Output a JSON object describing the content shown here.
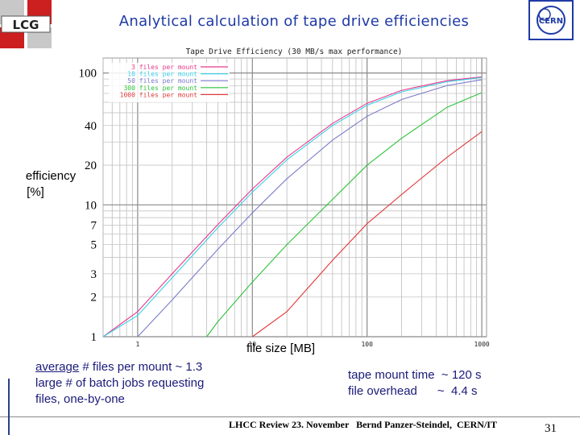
{
  "slide": {
    "title": "Analytical calculation of tape drive efficiencies",
    "y_axis_label_line1": "efficiency",
    "y_axis_label_line2": "[%]",
    "x_axis_label": "file size [MB]",
    "note_left": {
      "word_underlined": "average",
      "line1_rest": " # files per mount ~ 1.3",
      "line2": "large # of batch jobs requesting",
      "line3": "files, one-by-one"
    },
    "note_right": {
      "line1": "tape mount time  ~ 120 s",
      "line2": "file overhead      ~  4.4 s"
    },
    "footer": "LHCC Review 23. November   Bernd Panzer-Steindel,  CERN/IT",
    "page_number": "31",
    "logos": {
      "left": "LCG",
      "right": "CERN"
    }
  },
  "colors": {
    "title": "#1f3aa6",
    "series": [
      "#e8388a",
      "#3ad0e8",
      "#7a7acc",
      "#2ec23a",
      "#e03a3a"
    ]
  },
  "chart_data": {
    "type": "line",
    "title": "Tape Drive Efficiency (30 MB/s max performance)",
    "x_scale": "log",
    "y_scale": "log",
    "xlim": [
      0.5,
      1100
    ],
    "ylim": [
      1,
      130
    ],
    "x_ticks": [
      1,
      10,
      100,
      1000
    ],
    "x_tick_labels": [
      "1",
      "10",
      "100",
      "1000"
    ],
    "y_ticks": [
      1,
      2,
      3,
      5,
      7,
      10,
      20,
      40,
      100
    ],
    "y_tick_labels": [
      "1",
      "2",
      "3",
      "5",
      "7",
      "10",
      "20",
      "40",
      "100"
    ],
    "grid": true,
    "legend_position": "top-left",
    "series": [
      {
        "name": "3 files per mount",
        "x": [
          0.5,
          1,
          2,
          5,
          10,
          20,
          50,
          100,
          200,
          500,
          1000
        ],
        "y": [
          1.0,
          1.55,
          3.0,
          7.1,
          13.2,
          23.0,
          41.5,
          59.0,
          74.0,
          87.5,
          93.5
        ]
      },
      {
        "name": "10 files per mount",
        "x": [
          0.5,
          1,
          2,
          5,
          10,
          20,
          50,
          100,
          200,
          500,
          1000
        ],
        "y": [
          1.0,
          1.45,
          2.8,
          6.7,
          12.5,
          22.0,
          40.0,
          57.0,
          72.0,
          86.0,
          92.5
        ]
      },
      {
        "name": "50 files per mount",
        "x": [
          1,
          2,
          5,
          10,
          20,
          50,
          100,
          200,
          500,
          1000
        ],
        "y": [
          1.0,
          1.9,
          4.6,
          8.7,
          15.8,
          31.0,
          47.0,
          63.0,
          80.5,
          89.0
        ]
      },
      {
        "name": "300 files per mount",
        "x": [
          4,
          5,
          10,
          20,
          50,
          100,
          200,
          500,
          1000
        ],
        "y": [
          1.0,
          1.3,
          2.6,
          5.0,
          11.0,
          20.0,
          32.0,
          55.0,
          71.0
        ]
      },
      {
        "name": "1000 files per mount",
        "x": [
          10,
          20,
          50,
          100,
          200,
          500,
          1000
        ],
        "y": [
          1.0,
          1.55,
          3.8,
          7.2,
          12.0,
          23.0,
          36.0
        ]
      }
    ]
  }
}
